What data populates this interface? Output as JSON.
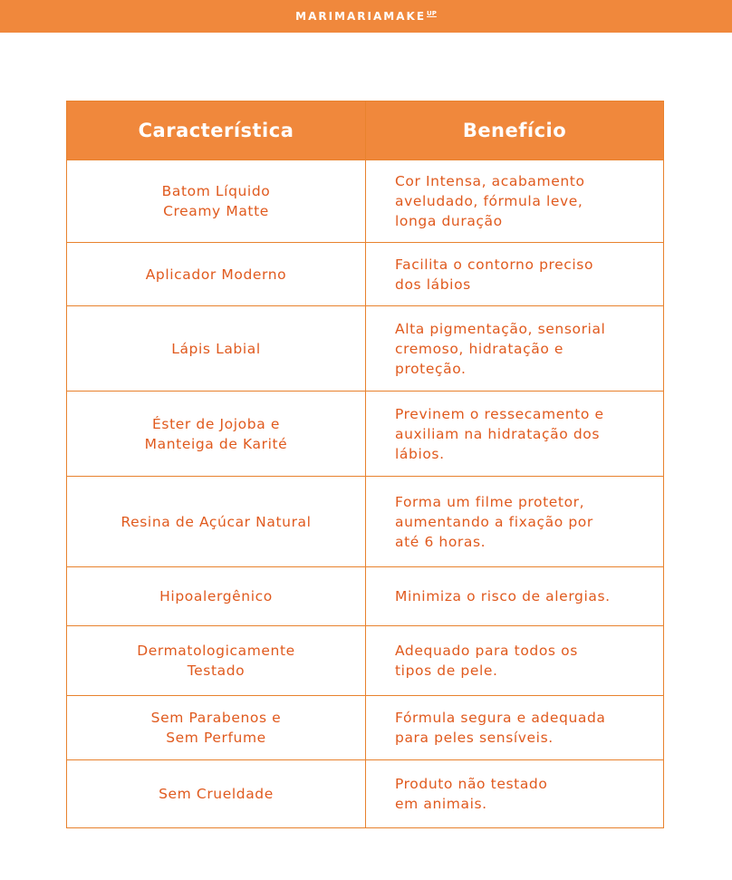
{
  "brand": {
    "name": "MARIMARIAMAKE",
    "sup": "UP"
  },
  "colors": {
    "accent": "#F0883C",
    "text": "#E05A1E"
  },
  "table": {
    "headers": [
      "Característica",
      "Benefício"
    ],
    "rows": [
      {
        "feature": "Batom Líquido\nCreamy Matte",
        "benefit": "Cor Intensa, acabamento\naveludado, fórmula leve,\nlonga duração"
      },
      {
        "feature": "Aplicador Moderno",
        "benefit": "Facilita o contorno preciso\ndos lábios"
      },
      {
        "feature": "Lápis Labial",
        "benefit": "Alta pigmentação, sensorial\ncremoso, hidratação e\nproteção."
      },
      {
        "feature": "Éster de Jojoba e\nManteiga de Karité",
        "benefit": "Previnem o ressecamento e\nauxiliam na hidratação dos\nlábios."
      },
      {
        "feature": "Resina de Açúcar Natural",
        "benefit": "Forma um filme protetor,\naumentando a fixação por\naté 6 horas."
      },
      {
        "feature": "Hipoalergênico",
        "benefit": "Minimiza o risco de alergias."
      },
      {
        "feature": "Dermatologicamente\nTestado",
        "benefit": "Adequado para todos os\ntipos de pele."
      },
      {
        "feature": "Sem Parabenos e\nSem Perfume",
        "benefit": "Fórmula segura e adequada\npara peles sensíveis."
      },
      {
        "feature": "Sem Crueldade",
        "benefit": "Produto não testado\nem animais."
      }
    ]
  }
}
